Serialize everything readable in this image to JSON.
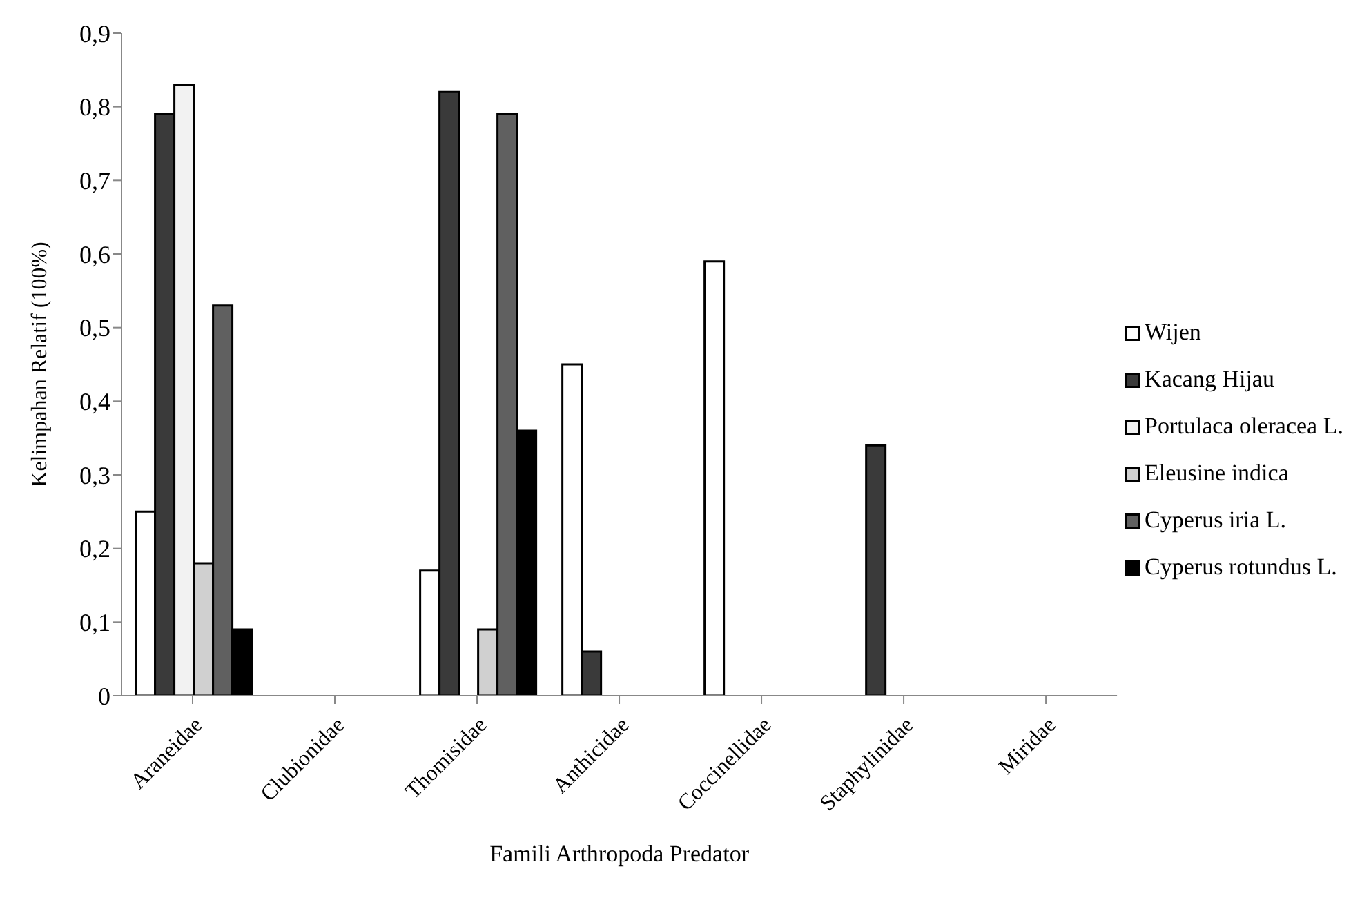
{
  "chart_data": {
    "type": "bar",
    "xlabel": "Famili Arthropoda Predator",
    "ylabel": "Kelimpahan Relatif (100%)",
    "categories": [
      "Araneidae",
      "Clubionidae",
      "Thomisidae",
      "Anthicidae",
      "Coccinellidae",
      "Staphylinidae",
      "Miridae"
    ],
    "series": [
      {
        "name": "Wijen",
        "color": "#ffffff",
        "values": [
          0.25,
          0,
          0.17,
          0.45,
          0.59,
          0,
          0
        ]
      },
      {
        "name": "Kacang Hijau",
        "color": "#3a3a3a",
        "values": [
          0.79,
          0,
          0.82,
          0.06,
          0,
          0.34,
          0
        ]
      },
      {
        "name": "Portulaca oleracea L.",
        "color": "#f2f2f2",
        "values": [
          0.83,
          0,
          0,
          0,
          0,
          0,
          0
        ]
      },
      {
        "name": "Eleusine indica",
        "color": "#d0d0d0",
        "values": [
          0.18,
          0,
          0.09,
          0,
          0,
          0,
          0
        ]
      },
      {
        "name": "Cyperus iria L.",
        "color": "#606060",
        "values": [
          0.53,
          0,
          0.79,
          0,
          0,
          0,
          0
        ]
      },
      {
        "name": "Cyperus rotundus L.",
        "color": "#000000",
        "values": [
          0.09,
          0,
          0.36,
          0,
          0,
          0,
          0
        ]
      }
    ],
    "ylim": [
      0,
      0.9
    ],
    "yticks": [
      0,
      {
        "value": 0.1,
        "label": "0,1"
      },
      {
        "value": 0.2,
        "label": "0,2"
      },
      {
        "value": 0.3,
        "label": "0,3"
      },
      {
        "value": 0.4,
        "label": "0,4"
      },
      {
        "value": 0.5,
        "label": "0,5"
      },
      {
        "value": 0.6,
        "label": "0,6"
      },
      {
        "value": 0.7,
        "label": "0,7"
      },
      {
        "value": 0.8,
        "label": "0,8"
      },
      {
        "value": 0.9,
        "label": "0,9"
      }
    ],
    "grid": false,
    "legend": "right"
  }
}
